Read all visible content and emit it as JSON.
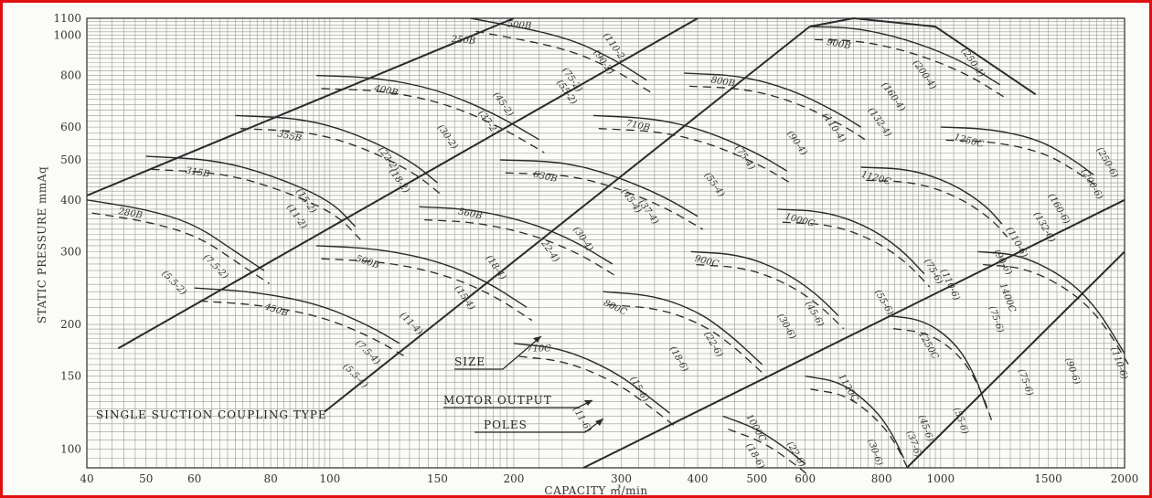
{
  "colors": {
    "frame": "#e01010",
    "grid": "#9a9a9a",
    "ink": "#2a2a2a"
  },
  "chart_data": {
    "type": "line",
    "xlabel": "CAPACITY  ㎥/min",
    "ylabel": "STATIC PRESSURE mmAq",
    "x_scale": "log",
    "y_scale": "log",
    "xlim": [
      40,
      2000
    ],
    "ylim": [
      90,
      1100
    ],
    "x_ticks": [
      40,
      50,
      60,
      80,
      100,
      150,
      200,
      300,
      400,
      500,
      600,
      800,
      1000,
      1500,
      2000
    ],
    "x_tick_labels": [
      "40",
      "50",
      "60",
      "80",
      "100",
      "150",
      "200",
      "300",
      "400",
      "500",
      "600",
      "800",
      "1000",
      "1500",
      "2000"
    ],
    "y_ticks": [
      100,
      150,
      200,
      300,
      400,
      500,
      600,
      800,
      1000,
      1100
    ],
    "y_tick_labels": [
      "100",
      "150",
      "200",
      "300",
      "400",
      "500",
      "600",
      "800",
      "1000",
      "1100"
    ],
    "grid": true,
    "annotation": "SINGLE SUCTION COUPLING TYPE",
    "legend_items": [
      {
        "label": "SIZE",
        "points_to": "710C"
      },
      {
        "label": "MOTOR OUTPUT",
        "points_to": "(11"
      },
      {
        "label": "POLES",
        "points_to": "-4)"
      }
    ],
    "boundary_lines": [
      {
        "name": "B-series upper limit",
        "points": [
          [
            40,
            410
          ],
          [
            200,
            1100
          ]
        ]
      },
      {
        "name": "B-series lower limit",
        "points": [
          [
            45,
            175
          ],
          [
            400,
            1100
          ]
        ]
      },
      {
        "name": "C-series upper limit",
        "points": [
          [
            98,
            123
          ],
          [
            610,
            1050
          ]
        ]
      },
      {
        "name": "C-series right limit",
        "points": [
          [
            610,
            1050
          ],
          [
            720,
            1100
          ],
          [
            980,
            1050
          ],
          [
            1430,
            720
          ]
        ]
      },
      {
        "name": "C-series lower limit",
        "points": [
          [
            260,
            90
          ],
          [
            2000,
            400
          ]
        ]
      },
      {
        "name": "C-series lower limit 2",
        "points": [
          [
            880,
            90
          ],
          [
            2000,
            300
          ]
        ]
      }
    ],
    "size_curves": [
      {
        "size": "280B",
        "points": [
          [
            40,
            400
          ],
          [
            50,
            380
          ],
          [
            60,
            350
          ],
          [
            70,
            300
          ],
          [
            78,
            270
          ]
        ]
      },
      {
        "size": "315B",
        "points": [
          [
            50,
            510
          ],
          [
            65,
            500
          ],
          [
            80,
            460
          ],
          [
            100,
            400
          ],
          [
            110,
            345
          ]
        ]
      },
      {
        "size": "355B",
        "points": [
          [
            70,
            640
          ],
          [
            90,
            630
          ],
          [
            110,
            580
          ],
          [
            135,
            500
          ],
          [
            150,
            440
          ]
        ]
      },
      {
        "size": "400B",
        "points": [
          [
            95,
            800
          ],
          [
            120,
            790
          ],
          [
            150,
            740
          ],
          [
            185,
            650
          ],
          [
            220,
            560
          ]
        ]
      },
      {
        "size": "450B",
        "points": [
          [
            60,
            245
          ],
          [
            75,
            240
          ],
          [
            95,
            225
          ],
          [
            115,
            200
          ],
          [
            130,
            180
          ]
        ]
      },
      {
        "size": "500B",
        "points": [
          [
            95,
            310
          ],
          [
            120,
            305
          ],
          [
            150,
            285
          ],
          [
            180,
            255
          ],
          [
            210,
            220
          ]
        ]
      },
      {
        "size": "560B",
        "points": [
          [
            140,
            385
          ],
          [
            170,
            380
          ],
          [
            210,
            355
          ],
          [
            250,
            320
          ],
          [
            290,
            280
          ]
        ]
      },
      {
        "size": "630B",
        "points": [
          [
            190,
            500
          ],
          [
            240,
            495
          ],
          [
            290,
            460
          ],
          [
            350,
            410
          ],
          [
            400,
            365
          ]
        ]
      },
      {
        "size": "710B",
        "points": [
          [
            270,
            640
          ],
          [
            340,
            630
          ],
          [
            410,
            590
          ],
          [
            500,
            520
          ],
          [
            560,
            470
          ]
        ]
      },
      {
        "size": "800B",
        "points": [
          [
            380,
            810
          ],
          [
            470,
            800
          ],
          [
            570,
            740
          ],
          [
            680,
            650
          ],
          [
            740,
            600
          ]
        ]
      },
      {
        "size": "900B",
        "points": [
          [
            610,
            1050
          ],
          [
            720,
            1045
          ],
          [
            880,
            980
          ],
          [
            1080,
            870
          ],
          [
            1250,
            760
          ]
        ]
      },
      {
        "size": "560B-top",
        "points": [
          [
            170,
            1100
          ],
          [
            240,
            1000
          ],
          [
            290,
            880
          ],
          [
            330,
            780
          ]
        ]
      },
      {
        "size": "710C",
        "points": [
          [
            200,
            180
          ],
          [
            240,
            175
          ],
          [
            290,
            155
          ],
          [
            330,
            135
          ],
          [
            360,
            122
          ]
        ]
      },
      {
        "size": "800C",
        "points": [
          [
            280,
            240
          ],
          [
            340,
            235
          ],
          [
            400,
            215
          ],
          [
            450,
            190
          ],
          [
            510,
            160
          ]
        ]
      },
      {
        "size": "900C",
        "points": [
          [
            390,
            300
          ],
          [
            470,
            295
          ],
          [
            550,
            270
          ],
          [
            620,
            240
          ],
          [
            680,
            210
          ]
        ]
      },
      {
        "size": "1000C",
        "points": [
          [
            540,
            380
          ],
          [
            650,
            375
          ],
          [
            760,
            345
          ],
          [
            860,
            305
          ],
          [
            940,
            265
          ]
        ]
      },
      {
        "size": "1120C",
        "points": [
          [
            740,
            480
          ],
          [
            890,
            475
          ],
          [
            1040,
            440
          ],
          [
            1180,
            390
          ],
          [
            1260,
            350
          ]
        ]
      },
      {
        "size": "1250C",
        "points": [
          [
            1000,
            600
          ],
          [
            1200,
            595
          ],
          [
            1450,
            560
          ],
          [
            1650,
            500
          ],
          [
            1780,
            460
          ]
        ]
      },
      {
        "size": "1000C-low",
        "points": [
          [
            440,
            120
          ],
          [
            500,
            112
          ],
          [
            560,
            100
          ],
          [
            600,
            92
          ]
        ]
      },
      {
        "size": "1120C-low",
        "points": [
          [
            600,
            150
          ],
          [
            690,
            145
          ],
          [
            780,
            125
          ],
          [
            830,
            110
          ],
          [
            870,
            95
          ]
        ]
      },
      {
        "size": "1250C-low",
        "points": [
          [
            820,
            210
          ],
          [
            940,
            205
          ],
          [
            1060,
            180
          ],
          [
            1140,
            150
          ],
          [
            1190,
            125
          ]
        ]
      },
      {
        "size": "1400C",
        "points": [
          [
            1150,
            300
          ],
          [
            1350,
            295
          ],
          [
            1600,
            260
          ],
          [
            1800,
            220
          ],
          [
            2000,
            170
          ]
        ]
      }
    ],
    "curve_labels": [
      {
        "text": "280B",
        "at": [
          45,
          370
        ],
        "rot": 10
      },
      {
        "text": "315B",
        "at": [
          58,
          465
        ],
        "rot": 10
      },
      {
        "text": "355B",
        "at": [
          82,
          570
        ],
        "rot": 12
      },
      {
        "text": "400B",
        "at": [
          118,
          735
        ],
        "rot": 12
      },
      {
        "text": "450B",
        "at": [
          78,
          218
        ],
        "rot": 18
      },
      {
        "text": "500B",
        "at": [
          110,
          285
        ],
        "rot": 18
      },
      {
        "text": "560B",
        "at": [
          162,
          370
        ],
        "rot": 12
      },
      {
        "text": "630B",
        "at": [
          215,
          455
        ],
        "rot": 12
      },
      {
        "text": "710B",
        "at": [
          305,
          605
        ],
        "rot": 12
      },
      {
        "text": "800B",
        "at": [
          420,
          770
        ],
        "rot": 10
      },
      {
        "text": "900B",
        "at": [
          650,
          950
        ],
        "rot": 10
      },
      {
        "text": "500B",
        "at": [
          195,
          1050
        ],
        "rot": 5
      },
      {
        "text": "250B",
        "at": [
          158,
          965
        ],
        "rot": 5
      },
      {
        "text": "710C",
        "at": [
          210,
          172
        ],
        "rot": 0
      },
      {
        "text": "800C",
        "at": [
          280,
          223
        ],
        "rot": 25
      },
      {
        "text": "900C",
        "at": [
          395,
          285
        ],
        "rot": 15
      },
      {
        "text": "1000C",
        "at": [
          555,
          360
        ],
        "rot": 15
      },
      {
        "text": "1120C",
        "at": [
          740,
          455
        ],
        "rot": 15
      },
      {
        "text": "1250C",
        "at": [
          1050,
          560
        ],
        "rot": 15
      },
      {
        "text": "1000C",
        "at": [
          480,
          120
        ],
        "rot": 60
      },
      {
        "text": "1120C",
        "at": [
          680,
          150
        ],
        "rot": 60
      },
      {
        "text": "1250C",
        "at": [
          920,
          190
        ],
        "rot": 60
      },
      {
        "text": "1400C",
        "at": [
          1250,
          250
        ],
        "rot": 70
      },
      {
        "text": "(110-2)",
        "at": [
          280,
          1000
        ],
        "rot": 55
      },
      {
        "text": "(90-2)",
        "at": [
          270,
          910
        ],
        "rot": 55
      },
      {
        "text": "(75-2)",
        "at": [
          240,
          825
        ],
        "rot": 55
      },
      {
        "text": "(55-2)",
        "at": [
          235,
          770
        ],
        "rot": 55
      },
      {
        "text": "(45-2)",
        "at": [
          185,
          720
        ],
        "rot": 55
      },
      {
        "text": "(37-2)",
        "at": [
          175,
          650
        ],
        "rot": 55
      },
      {
        "text": "(30-2)",
        "at": [
          150,
          600
        ],
        "rot": 55
      },
      {
        "text": "(22-2)",
        "at": [
          120,
          530
        ],
        "rot": 55
      },
      {
        "text": "(18-2)",
        "at": [
          125,
          470
        ],
        "rot": 55
      },
      {
        "text": "(15-2)",
        "at": [
          88,
          420
        ],
        "rot": 55
      },
      {
        "text": "(11-2)",
        "at": [
          85,
          385
        ],
        "rot": 55
      },
      {
        "text": "(7.5-2)",
        "at": [
          62,
          290
        ],
        "rot": 45
      },
      {
        "text": "(5.5-2)",
        "at": [
          53,
          265
        ],
        "rot": 45
      },
      {
        "text": "(7.5-4)",
        "at": [
          110,
          180
        ],
        "rot": 45
      },
      {
        "text": "(5.5-4)",
        "at": [
          105,
          158
        ],
        "rot": 45
      },
      {
        "text": "(11-4)",
        "at": [
          130,
          210
        ],
        "rot": 45
      },
      {
        "text": "(15-4)",
        "at": [
          160,
          245
        ],
        "rot": 55
      },
      {
        "text": "(18-4)",
        "at": [
          180,
          290
        ],
        "rot": 55
      },
      {
        "text": "(22-4)",
        "at": [
          220,
          320
        ],
        "rot": 55
      },
      {
        "text": "(30-4)",
        "at": [
          250,
          340
        ],
        "rot": 55
      },
      {
        "text": "(37-4)",
        "at": [
          320,
          395
        ],
        "rot": 55
      },
      {
        "text": "(45-4)",
        "at": [
          300,
          420
        ],
        "rot": 55
      },
      {
        "text": "(55-4)",
        "at": [
          410,
          460
        ],
        "rot": 55
      },
      {
        "text": "(75-4)",
        "at": [
          460,
          535
        ],
        "rot": 55
      },
      {
        "text": "(90-4)",
        "at": [
          560,
          580
        ],
        "rot": 55
      },
      {
        "text": "(110-4)",
        "at": [
          640,
          640
        ],
        "rot": 55
      },
      {
        "text": "(132-4)",
        "at": [
          760,
          660
        ],
        "rot": 55
      },
      {
        "text": "(160-4)",
        "at": [
          800,
          760
        ],
        "rot": 55
      },
      {
        "text": "(200-4)",
        "at": [
          900,
          860
        ],
        "rot": 55
      },
      {
        "text": "(250-4)",
        "at": [
          1080,
          920
        ],
        "rot": 55
      },
      {
        "text": "(250-6)",
        "at": [
          1800,
          530
        ],
        "rot": 60
      },
      {
        "text": "(200-6)",
        "at": [
          1700,
          470
        ],
        "rot": 60
      },
      {
        "text": "(160-6)",
        "at": [
          1500,
          410
        ],
        "rot": 60
      },
      {
        "text": "(132-6)",
        "at": [
          1420,
          370
        ],
        "rot": 60
      },
      {
        "text": "(110-6)",
        "at": [
          1280,
          340
        ],
        "rot": 60
      },
      {
        "text": "(90-6)",
        "at": [
          1220,
          300
        ],
        "rot": 60
      },
      {
        "text": "(75-6)",
        "at": [
          940,
          285
        ],
        "rot": 60
      },
      {
        "text": "(55-6)",
        "at": [
          780,
          240
        ],
        "rot": 60
      },
      {
        "text": "(45-6)",
        "at": [
          600,
          225
        ],
        "rot": 60
      },
      {
        "text": "(30-6)",
        "at": [
          540,
          210
        ],
        "rot": 60
      },
      {
        "text": "(22-6)",
        "at": [
          410,
          190
        ],
        "rot": 60
      },
      {
        "text": "(18-6)",
        "at": [
          360,
          175
        ],
        "rot": 60
      },
      {
        "text": "(15-6)",
        "at": [
          310,
          148
        ],
        "rot": 60
      },
      {
        "text": "(11-6)",
        "at": [
          250,
          125
        ],
        "rot": 60
      },
      {
        "text": "(18-6)",
        "at": [
          480,
          102
        ],
        "rot": 60
      },
      {
        "text": "(22-6)",
        "at": [
          560,
          103
        ],
        "rot": 60
      },
      {
        "text": "(30-6)",
        "at": [
          760,
          105
        ],
        "rot": 70
      },
      {
        "text": "(37-6)",
        "at": [
          880,
          110
        ],
        "rot": 70
      },
      {
        "text": "(45-6)",
        "at": [
          920,
          120
        ],
        "rot": 70
      },
      {
        "text": "(55-6)",
        "at": [
          1050,
          125
        ],
        "rot": 70
      },
      {
        "text": "(75-6)",
        "at": [
          1340,
          155
        ],
        "rot": 70
      },
      {
        "text": "(90-6)",
        "at": [
          1600,
          165
        ],
        "rot": 70
      },
      {
        "text": "(110-6)",
        "at": [
          1900,
          175
        ],
        "rot": 70
      },
      {
        "text": "(75-6)",
        "at": [
          1200,
          220
        ],
        "rot": 70
      },
      {
        "text": "(110-6)",
        "at": [
          1000,
          270
        ],
        "rot": 65
      }
    ]
  }
}
